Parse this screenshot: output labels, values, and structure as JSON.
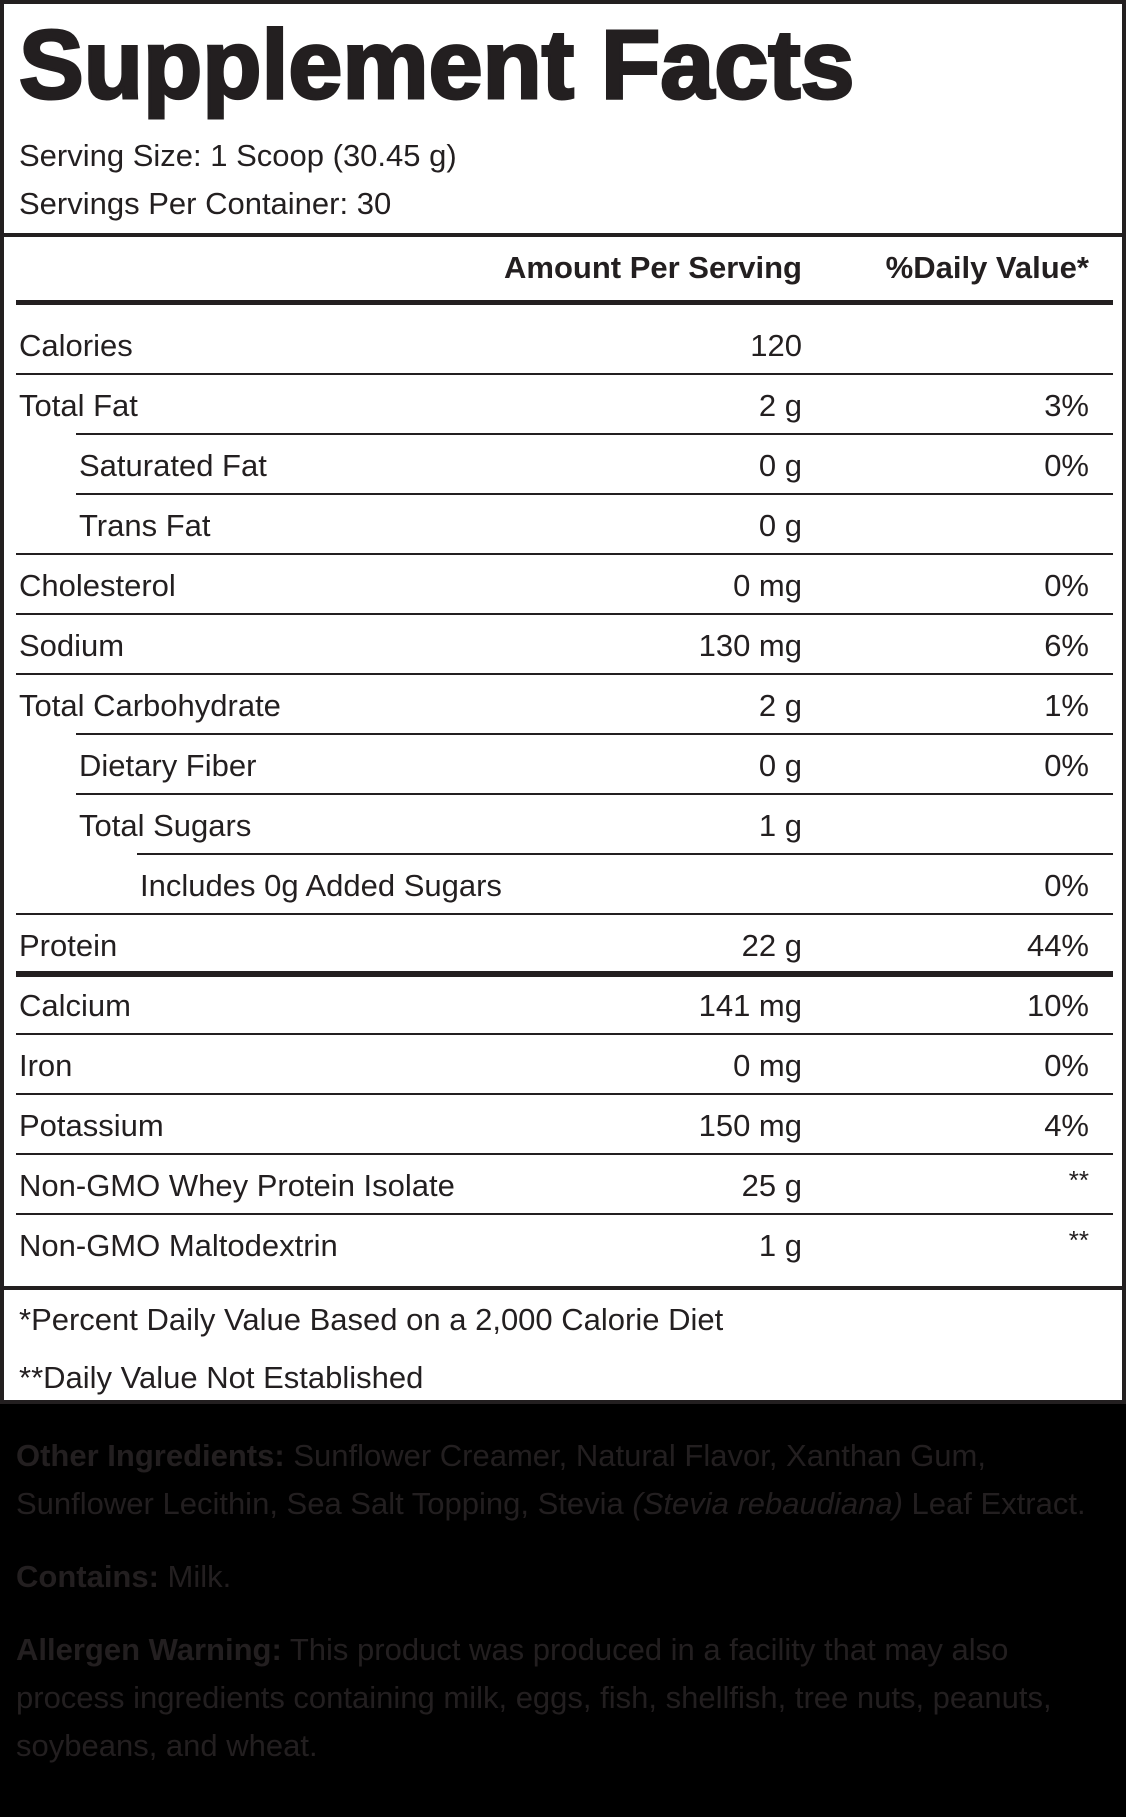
{
  "label": {
    "title": "Supplement Facts",
    "serving_size": "Serving Size: 1 Scoop (30.45 g)",
    "servings_per_container": "Servings Per Container: 30",
    "header": {
      "amount": "Amount Per Serving",
      "daily_value": "%Daily Value*"
    },
    "rows": [
      {
        "name": "Calories",
        "amount": "120",
        "dv": "",
        "indent": 0
      },
      {
        "name": "Total Fat",
        "amount": "2 g",
        "dv": "3%",
        "indent": 0
      },
      {
        "name": "Saturated Fat",
        "amount": "0 g",
        "dv": "0%",
        "indent": 1
      },
      {
        "name": "Trans Fat",
        "amount": "0 g",
        "dv": "",
        "indent": 1
      },
      {
        "name": "Cholesterol",
        "amount": "0 mg",
        "dv": "0%",
        "indent": 0
      },
      {
        "name": "Sodium",
        "amount": "130 mg",
        "dv": "6%",
        "indent": 0
      },
      {
        "name": "Total Carbohydrate",
        "amount": "2 g",
        "dv": "1%",
        "indent": 0
      },
      {
        "name": "Dietary Fiber",
        "amount": "0 g",
        "dv": "0%",
        "indent": 1
      },
      {
        "name": "Total Sugars",
        "amount": "1 g",
        "dv": "",
        "indent": 1
      },
      {
        "name": "Includes 0g Added Sugars",
        "amount": "",
        "dv": "0%",
        "indent": 2
      },
      {
        "name": "Protein",
        "amount": "22 g",
        "dv": "44%",
        "indent": 0
      },
      {
        "name": "Calcium",
        "amount": "141 mg",
        "dv": "10%",
        "indent": 0
      },
      {
        "name": "Iron",
        "amount": "0 mg",
        "dv": "0%",
        "indent": 0
      },
      {
        "name": "Potassium",
        "amount": "150 mg",
        "dv": "4%",
        "indent": 0
      },
      {
        "name": "Non-GMO Whey Protein Isolate",
        "amount": "25 g",
        "dv": "**",
        "indent": 0
      },
      {
        "name": "Non-GMO Maltodextrin",
        "amount": "1 g",
        "dv": "**",
        "indent": 0
      }
    ],
    "footnotes": [
      "*Percent Daily Value Based on a 2,000 Calorie Diet",
      "**Daily Value Not Established"
    ]
  },
  "ingredients": {
    "other_label": "Other Ingredients:",
    "other_text_1": " Sunflower Creamer, Natural Flavor, Xanthan Gum, Sunflower Lecithin, Sea Salt Topping, Stevia ",
    "other_italic": "(Stevia rebaudiana)",
    "other_text_2": " Leaf Extract.",
    "contains_label": "Contains:",
    "contains_text": " Milk.",
    "allergen_label": "Allergen Warning:",
    "allergen_text": " This product was produced in a facility that may also process ingredients containing milk, eggs, fish, shellfish, tree nuts, peanuts, soybeans, and wheat."
  },
  "colors": {
    "ink": "#231f20",
    "panel_bg": "#ffffff",
    "page_bg": "#000000"
  }
}
